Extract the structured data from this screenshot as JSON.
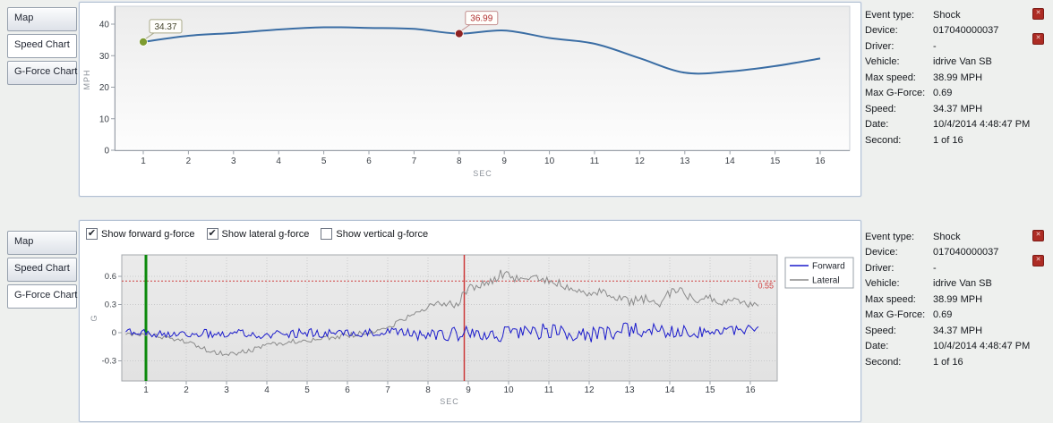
{
  "tabs": [
    "Map",
    "Speed Chart",
    "G-Force Chart"
  ],
  "panels": {
    "top": {
      "selected_tab": "Speed Chart"
    },
    "bottom": {
      "selected_tab": "G-Force Chart"
    }
  },
  "info": {
    "rows": [
      {
        "label": "Event type:",
        "value": "Shock"
      },
      {
        "label": "Device:",
        "value": "017040000037"
      },
      {
        "label": "Driver:",
        "value": "-"
      },
      {
        "label": "Vehicle:",
        "value": "idrive Van SB"
      },
      {
        "label": "Max speed:",
        "value": "38.99 MPH"
      },
      {
        "label": "Max G-Force:",
        "value": "0.69"
      },
      {
        "label": "Speed:",
        "value": "34.37 MPH"
      },
      {
        "label": "Date:",
        "value": "10/4/2014 4:48:47 PM"
      },
      {
        "label": "Second:",
        "value": "1 of 16"
      }
    ]
  },
  "gforce_controls": [
    {
      "label": "Show forward g-force",
      "checked": true
    },
    {
      "label": "Show lateral g-force",
      "checked": true
    },
    {
      "label": "Show vertical g-force",
      "checked": false
    }
  ],
  "icons": {
    "close": "✕",
    "check": "✔"
  },
  "chart_data": [
    {
      "id": "speed",
      "type": "line",
      "title": "",
      "xlabel": "SEC",
      "ylabel": "MPH",
      "x": [
        1,
        2,
        3,
        4,
        5,
        6,
        7,
        8,
        9,
        10,
        11,
        12,
        13,
        14,
        15,
        16
      ],
      "values": [
        34.37,
        36.3,
        37.2,
        38.3,
        39,
        38.8,
        38.5,
        36.99,
        38,
        35.6,
        33.8,
        29.2,
        24.6,
        25,
        26.7,
        29.1
      ],
      "ylim": [
        0,
        40
      ],
      "yticks": [
        0,
        10,
        20,
        30,
        40
      ],
      "grid": false,
      "legend": false,
      "line_color": "#3a6da4",
      "markers": [
        {
          "x": 1,
          "y": 34.37,
          "label": "34.37",
          "dot_color": "#7d9b30",
          "text_color": "#44442c",
          "border_color": "#a9a989"
        },
        {
          "x": 8,
          "y": 36.99,
          "label": "36.99",
          "dot_color": "#8e2222",
          "text_color": "#b03030",
          "border_color": "#c49090"
        }
      ]
    },
    {
      "id": "gforce",
      "type": "line",
      "title": "",
      "xlabel": "SEC",
      "ylabel": "G",
      "x_ticks": [
        1,
        2,
        3,
        4,
        5,
        6,
        7,
        8,
        9,
        10,
        11,
        12,
        13,
        14,
        15,
        16
      ],
      "yticks": [
        -0.3,
        0,
        0.3,
        0.6
      ],
      "ylim": [
        -0.5,
        0.82
      ],
      "grid": "dotted",
      "threshold": {
        "value": 0.55,
        "label": "0.55",
        "color": "#d04040"
      },
      "cursors": [
        {
          "name": "start-cursor",
          "x": 1,
          "color": "#0c8a0c",
          "width": 3
        },
        {
          "name": "event-cursor",
          "x": 8.9,
          "color": "#cc3838",
          "width": 1.5
        }
      ],
      "legend": {
        "position": "top-right",
        "entries": [
          "Forward",
          "Lateral"
        ]
      },
      "series": [
        {
          "name": "Forward",
          "color": "#1a1acc",
          "keypoints": [
            [
              1,
              0
            ],
            [
              2,
              -0.02
            ],
            [
              3,
              0
            ],
            [
              4,
              -0.02
            ],
            [
              5,
              0
            ],
            [
              6,
              -0.02
            ],
            [
              7,
              0
            ],
            [
              8,
              -0.03
            ],
            [
              9,
              -0.01
            ],
            [
              10,
              -0.02
            ],
            [
              11,
              0.02
            ],
            [
              12,
              -0.02
            ],
            [
              13,
              0.03
            ],
            [
              14,
              0.02
            ],
            [
              15,
              0
            ],
            [
              16,
              0.04
            ]
          ],
          "noise_amp": [
            [
              1,
              0.045
            ],
            [
              7,
              0.05
            ],
            [
              8,
              0.06
            ],
            [
              9,
              0.085
            ],
            [
              13,
              0.085
            ],
            [
              14,
              0.07
            ],
            [
              16,
              0.05
            ]
          ]
        },
        {
          "name": "Lateral",
          "color": "#8a8a8a",
          "keypoints": [
            [
              1,
              -0.02
            ],
            [
              1.5,
              -0.05
            ],
            [
              2,
              -0.09
            ],
            [
              2.5,
              -0.18
            ],
            [
              3,
              -0.24
            ],
            [
              3.5,
              -0.2
            ],
            [
              4,
              -0.13
            ],
            [
              4.5,
              -0.1
            ],
            [
              5,
              -0.08
            ],
            [
              5.5,
              -0.05
            ],
            [
              6,
              -0.03
            ],
            [
              6.5,
              0
            ],
            [
              7,
              0.05
            ],
            [
              7.5,
              0.16
            ],
            [
              8,
              0.28
            ],
            [
              8.4,
              0.31
            ],
            [
              8.7,
              0.29
            ],
            [
              8.9,
              0.44
            ],
            [
              9.2,
              0.5
            ],
            [
              9.5,
              0.52
            ],
            [
              9.8,
              0.62
            ],
            [
              10,
              0.6
            ],
            [
              10.3,
              0.55
            ],
            [
              10.7,
              0.58
            ],
            [
              11,
              0.55
            ],
            [
              11.4,
              0.5
            ],
            [
              11.7,
              0.46
            ],
            [
              12,
              0.42
            ],
            [
              12.3,
              0.45
            ],
            [
              12.7,
              0.38
            ],
            [
              13,
              0.33
            ],
            [
              13.4,
              0.36
            ],
            [
              13.7,
              0.3
            ],
            [
              14,
              0.42
            ],
            [
              14.3,
              0.44
            ],
            [
              14.6,
              0.34
            ],
            [
              15,
              0.38
            ],
            [
              15.3,
              0.32
            ],
            [
              15.6,
              0.37
            ],
            [
              16,
              0.3
            ]
          ],
          "noise_amp": [
            [
              1,
              0.025
            ],
            [
              8,
              0.03
            ],
            [
              9,
              0.05
            ],
            [
              13,
              0.05
            ],
            [
              16,
              0.04
            ]
          ]
        }
      ]
    }
  ]
}
